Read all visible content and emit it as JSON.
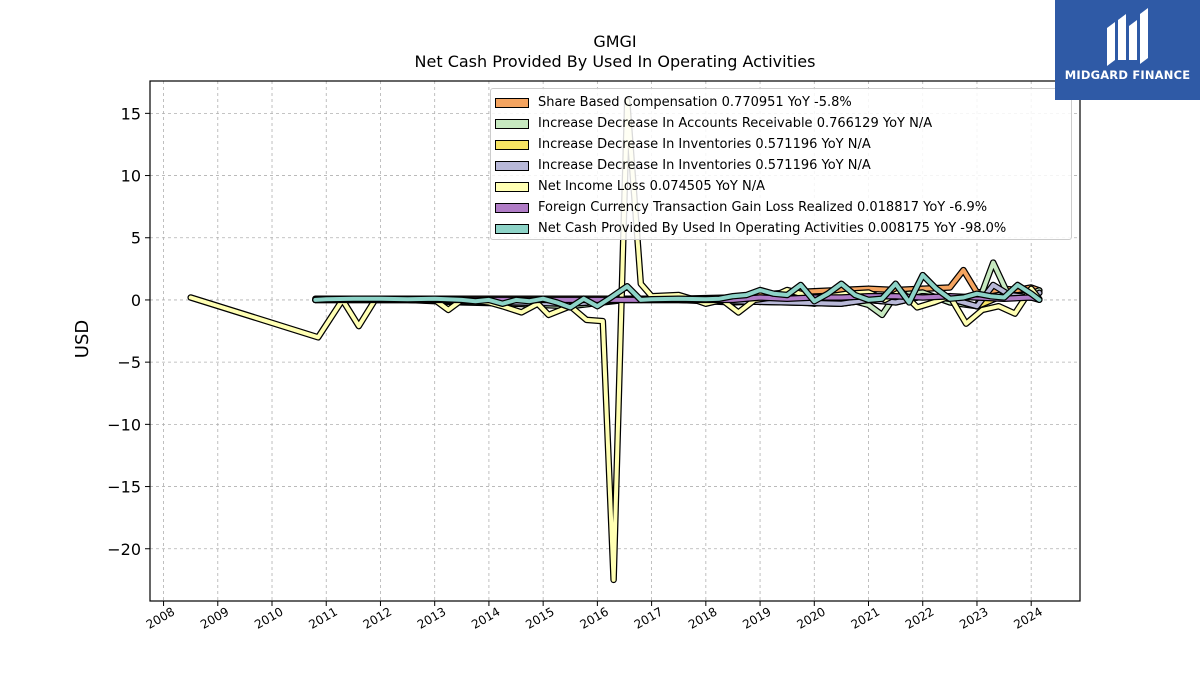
{
  "header": {
    "title": "GMGI",
    "subtitle": "Net Cash Provided By Used In Operating Activities"
  },
  "logo": {
    "text": "MIDGARD FINANCE",
    "background": "#2f5aa6"
  },
  "chart_data": {
    "type": "line",
    "title": "GMGI",
    "subtitle": "Net Cash Provided By Used In Operating Activities",
    "ylabel": "USD",
    "xlabel": "",
    "ylim": [
      -24.2,
      17.6
    ],
    "xlim": [
      2007.75,
      2024.9
    ],
    "yticks": [
      15,
      10,
      5,
      0,
      -5,
      -10,
      -15,
      -20
    ],
    "ytick_labels": [
      "15",
      "10",
      "5",
      "0",
      "−5",
      "−10",
      "−15",
      "−20"
    ],
    "xticks": [
      2008,
      2009,
      2010,
      2011,
      2012,
      2013,
      2014,
      2015,
      2016,
      2017,
      2018,
      2019,
      2020,
      2021,
      2022,
      2023,
      2024
    ],
    "xtick_labels": [
      "2008",
      "2009",
      "2010",
      "2011",
      "2012",
      "2013",
      "2014",
      "2015",
      "2016",
      "2017",
      "2018",
      "2019",
      "2020",
      "2021",
      "2022",
      "2023",
      "2024"
    ],
    "grid": true,
    "legend_position": "top-right",
    "series": [
      {
        "name": "Share Based Compensation  0.770951 YoY -5.8%",
        "color": "#f4a460",
        "x": [
          2010.8,
          2011.5,
          2012.5,
          2013.5,
          2014.5,
          2015.5,
          2016.5,
          2017.5,
          2018.5,
          2019.5,
          2020.0,
          2020.5,
          2021.0,
          2021.5,
          2022.0,
          2022.5,
          2022.75,
          2023.0,
          2023.25,
          2023.5,
          2023.75,
          2024.0,
          2024.15
        ],
        "y": [
          0.1,
          0.1,
          0.1,
          0.1,
          0.1,
          0.1,
          0.1,
          0.1,
          0.2,
          0.6,
          0.7,
          0.8,
          0.9,
          0.8,
          0.9,
          1.0,
          2.4,
          0.6,
          0.7,
          0.9,
          0.8,
          1.0,
          0.77
        ]
      },
      {
        "name": "Increase Decrease In Accounts Receivable  0.766129 YoY N/A",
        "color": "#c7e9c0",
        "x": [
          2010.8,
          2011.5,
          2012.5,
          2013.5,
          2014.5,
          2015.5,
          2016.5,
          2017.5,
          2018.5,
          2019.5,
          2020.0,
          2020.5,
          2021.0,
          2021.25,
          2021.5,
          2022.0,
          2022.5,
          2023.0,
          2023.3,
          2023.6,
          2024.0,
          2024.15
        ],
        "y": [
          0.0,
          0.0,
          0.0,
          -0.2,
          -0.3,
          -0.5,
          0.0,
          0.0,
          -0.2,
          0.0,
          -0.3,
          0.2,
          -0.4,
          -1.2,
          0.4,
          0.6,
          -0.2,
          -0.5,
          3.0,
          0.2,
          0.5,
          0.77
        ]
      },
      {
        "name": "Increase Decrease In Inventories  0.571196 YoY N/A",
        "color": "#f7e463",
        "x": [
          2010.8,
          2011.5,
          2012.5,
          2013.5,
          2014.5,
          2015.5,
          2016.5,
          2017.5,
          2018.5,
          2019.5,
          2020.5,
          2021.0,
          2021.5,
          2022.0,
          2022.5,
          2023.0,
          2023.5,
          2024.0,
          2024.15
        ],
        "y": [
          0.0,
          0.0,
          0.0,
          -0.1,
          -0.2,
          -0.3,
          0.0,
          0.0,
          -0.1,
          -0.2,
          -0.3,
          0.0,
          -0.2,
          0.3,
          0.1,
          -0.5,
          0.4,
          0.2,
          0.57
        ]
      },
      {
        "name": "Increase Decrease In Inventories  0.571196 YoY N/A",
        "color": "#b8b8d8",
        "x": [
          2010.8,
          2011.5,
          2012.5,
          2013.5,
          2014.5,
          2015.5,
          2016.5,
          2017.5,
          2018.5,
          2019.5,
          2020.5,
          2021.0,
          2021.5,
          2022.0,
          2022.5,
          2023.0,
          2023.3,
          2023.6,
          2024.0,
          2024.15
        ],
        "y": [
          0.0,
          0.0,
          0.0,
          -0.1,
          -0.2,
          -0.3,
          0.0,
          0.0,
          -0.1,
          -0.2,
          -0.3,
          0.0,
          -0.2,
          0.3,
          0.1,
          -0.5,
          1.2,
          0.4,
          0.2,
          0.57
        ]
      },
      {
        "name": "Net Income Loss  0.074505 YoY N/A",
        "color": "#ffffb3",
        "x": [
          2008.5,
          2010.85,
          2011.3,
          2011.6,
          2011.9,
          2012.5,
          2013.0,
          2013.25,
          2013.5,
          2014.0,
          2014.25,
          2014.6,
          2014.9,
          2015.1,
          2015.5,
          2015.8,
          2016.1,
          2016.3,
          2016.55,
          2016.8,
          2017.0,
          2017.5,
          2017.8,
          2018.0,
          2018.3,
          2018.6,
          2018.9,
          2019.2,
          2019.5,
          2019.75,
          2020.0,
          2020.3,
          2020.6,
          2021.0,
          2021.3,
          2021.6,
          2021.9,
          2022.2,
          2022.5,
          2022.8,
          2023.1,
          2023.4,
          2023.7,
          2024.0,
          2024.15
        ],
        "y": [
          0.2,
          -3.0,
          0.0,
          -2.1,
          0.0,
          0.0,
          0.0,
          -0.8,
          0.0,
          -0.2,
          -0.5,
          -1.0,
          -0.3,
          -1.2,
          -0.5,
          -1.6,
          -1.7,
          -22.5,
          16.0,
          1.3,
          0.3,
          0.4,
          0.0,
          -0.3,
          0.0,
          -1.0,
          0.0,
          0.2,
          0.8,
          0.5,
          0.2,
          0.3,
          0.5,
          0.6,
          0.0,
          0.7,
          -0.6,
          -0.2,
          0.3,
          -1.9,
          -0.8,
          -0.5,
          -1.1,
          0.9,
          0.07
        ]
      },
      {
        "name": "Foreign Currency Transaction Gain Loss Realized  0.018817 YoY -6.9%",
        "color": "#b07cc6",
        "x": [
          2010.8,
          2011.5,
          2012.5,
          2013.5,
          2014.5,
          2015.5,
          2016.5,
          2017.5,
          2018.5,
          2019.0,
          2019.5,
          2020.0,
          2020.5,
          2021.0,
          2021.5,
          2022.0,
          2022.5,
          2023.0,
          2023.5,
          2024.0,
          2024.15
        ],
        "y": [
          0.0,
          0.0,
          0.0,
          0.0,
          0.0,
          0.0,
          0.0,
          0.0,
          0.0,
          0.2,
          0.1,
          0.2,
          0.2,
          0.3,
          0.3,
          0.2,
          0.3,
          0.2,
          0.1,
          0.2,
          0.02
        ]
      },
      {
        "name": "Net Cash Provided By Used In Operating Activities  0.008175 YoY -98.0%",
        "color": "#8dd3c7",
        "x": [
          2010.8,
          2011.0,
          2011.5,
          2012.0,
          2012.5,
          2013.0,
          2013.5,
          2013.75,
          2014.0,
          2014.25,
          2014.5,
          2014.75,
          2015.0,
          2015.25,
          2015.5,
          2015.75,
          2016.0,
          2016.25,
          2016.55,
          2016.8,
          2017.0,
          2017.5,
          2018.0,
          2018.25,
          2018.5,
          2018.75,
          2019.0,
          2019.25,
          2019.5,
          2019.75,
          2020.0,
          2020.25,
          2020.5,
          2020.75,
          2021.0,
          2021.25,
          2021.5,
          2021.75,
          2022.0,
          2022.25,
          2022.5,
          2022.75,
          2023.0,
          2023.25,
          2023.5,
          2023.75,
          2024.0,
          2024.15
        ],
        "y": [
          0.0,
          0.05,
          0.1,
          0.1,
          0.05,
          0.1,
          0.0,
          -0.1,
          0.0,
          -0.3,
          0.0,
          -0.1,
          0.1,
          -0.2,
          -0.6,
          0.1,
          -0.5,
          0.2,
          1.1,
          0.0,
          0.05,
          0.1,
          0.05,
          0.1,
          0.3,
          0.4,
          0.8,
          0.5,
          0.4,
          1.2,
          -0.1,
          0.5,
          1.3,
          0.4,
          0.0,
          0.1,
          1.3,
          -0.2,
          2.0,
          0.9,
          0.1,
          0.2,
          0.5,
          0.3,
          0.2,
          1.2,
          0.5,
          0.008
        ]
      }
    ]
  }
}
